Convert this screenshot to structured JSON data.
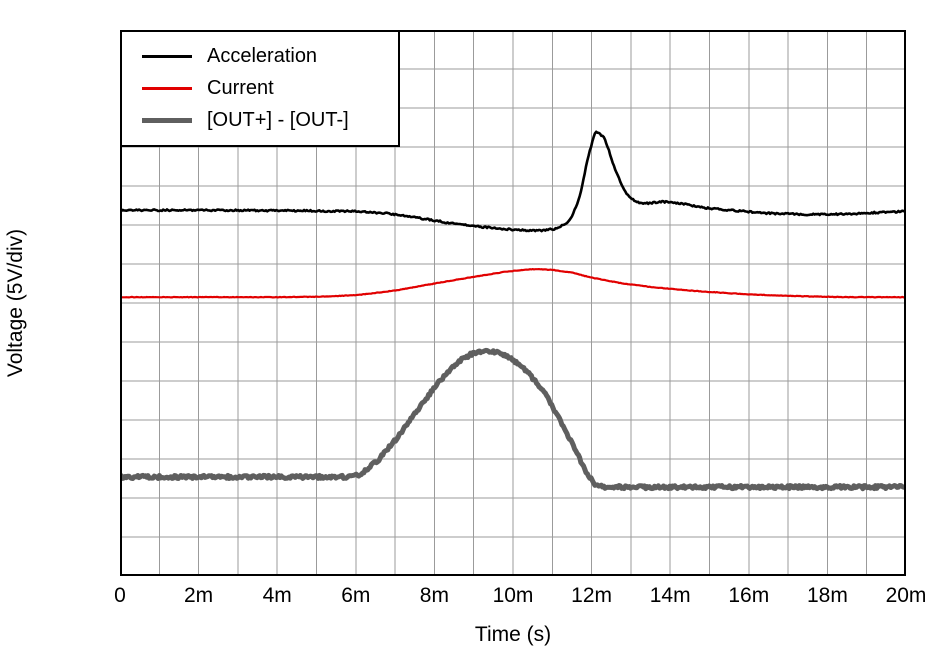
{
  "chart_data": {
    "type": "line",
    "title": "",
    "xlabel": "Time (s)",
    "ylabel": "Voltage (5V/div)",
    "x_unit": "ms",
    "xlim": [
      0,
      20
    ],
    "y_unit": "divisions (5V/div)",
    "ylim": [
      0,
      14
    ],
    "x_tick_labels": [
      "0",
      "2m",
      "4m",
      "6m",
      "8m",
      "10m",
      "12m",
      "14m",
      "16m",
      "18m",
      "20m"
    ],
    "x_tick_values": [
      0,
      2,
      4,
      6,
      8,
      10,
      12,
      14,
      16,
      18,
      20
    ],
    "grid": {
      "on": true,
      "x_divisions": 20,
      "y_divisions": 14,
      "color": "#9b9b9b",
      "border_color": "#000000"
    },
    "legend_position": "top-left",
    "series": [
      {
        "name": "Acceleration",
        "color": "#000000",
        "width": 2.6,
        "noise": 0.8,
        "x": [
          0,
          2,
          4,
          6,
          6.8,
          7.6,
          8.4,
          9.2,
          10,
          10.6,
          11.1,
          11.45,
          11.7,
          11.9,
          12.1,
          12.35,
          12.6,
          12.85,
          13.1,
          13.4,
          13.8,
          14.3,
          14.8,
          15.5,
          16.5,
          17.5,
          18.5,
          19.3,
          20
        ],
        "y": [
          9.38,
          9.38,
          9.37,
          9.35,
          9.3,
          9.18,
          9.05,
          8.95,
          8.88,
          8.85,
          8.9,
          9.1,
          9.7,
          10.7,
          11.44,
          11.2,
          10.4,
          9.85,
          9.6,
          9.55,
          9.6,
          9.55,
          9.45,
          9.38,
          9.3,
          9.27,
          9.28,
          9.32,
          9.35
        ]
      },
      {
        "name": "Current",
        "color": "#e10000",
        "width": 2.2,
        "noise": 0.25,
        "x": [
          0,
          2,
          4,
          5,
          6,
          7,
          8,
          9,
          9.8,
          10.5,
          11,
          11.5,
          12,
          12.8,
          13.6,
          14.5,
          15.5,
          16.5,
          17.5,
          18.5,
          20
        ],
        "y": [
          7.15,
          7.15,
          7.15,
          7.16,
          7.2,
          7.32,
          7.5,
          7.67,
          7.8,
          7.87,
          7.85,
          7.78,
          7.65,
          7.5,
          7.4,
          7.32,
          7.25,
          7.2,
          7.17,
          7.15,
          7.15
        ]
      },
      {
        "name": "[OUT+] - [OUT-]",
        "color": "#5f5f5f",
        "width": 5,
        "noise": 1.6,
        "x": [
          0,
          2,
          4,
          5.9,
          6.1,
          6.6,
          7.1,
          7.6,
          8.1,
          8.6,
          9,
          9.3,
          9.6,
          10,
          10.4,
          10.8,
          11.2,
          11.6,
          11.9,
          12.1,
          12.3,
          13,
          14,
          16,
          18,
          20
        ],
        "y": [
          2.54,
          2.54,
          2.54,
          2.54,
          2.6,
          3.0,
          3.6,
          4.3,
          4.95,
          5.5,
          5.72,
          5.78,
          5.73,
          5.55,
          5.2,
          4.7,
          4.0,
          3.2,
          2.6,
          2.32,
          2.28,
          2.28,
          2.28,
          2.28,
          2.28,
          2.28
        ]
      }
    ]
  }
}
